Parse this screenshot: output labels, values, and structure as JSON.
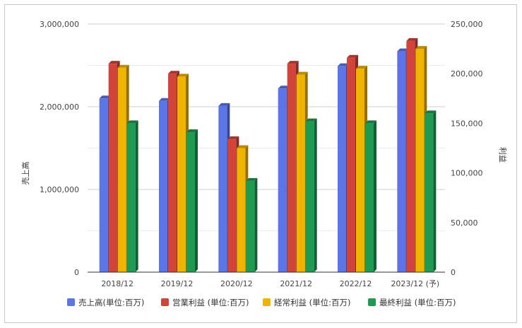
{
  "chart_data": {
    "type": "bar",
    "title": "",
    "categories": [
      "2018/12",
      "2019/12",
      "2020/12",
      "2021/12",
      "2022/12",
      "2023/12 (予)"
    ],
    "left_axis": {
      "label": "売上高",
      "ylim": [
        0,
        3000000
      ],
      "ticks": [
        0,
        1000000,
        2000000,
        3000000
      ],
      "tick_labels": [
        "0",
        "1,000,000",
        "2,000,000",
        "3,000,000"
      ]
    },
    "right_axis": {
      "label": "利益",
      "ylim": [
        0,
        250000
      ],
      "ticks": [
        0,
        50000,
        100000,
        150000,
        200000,
        250000
      ],
      "tick_labels": [
        "0",
        "50,000",
        "100,000",
        "150,000",
        "200,000",
        "250,000"
      ]
    },
    "series": [
      {
        "name": "売上高(単位:百万)",
        "axis": "left",
        "color": "#5b74e8",
        "values": [
          2100000,
          2070000,
          2010000,
          2220000,
          2490000,
          2670000
        ]
      },
      {
        "name": "営業利益 (単位:百万)",
        "axis": "right",
        "color": "#d2433a",
        "values": [
          210000,
          200000,
          134000,
          210000,
          216000,
          233000
        ]
      },
      {
        "name": "経常利益 (単位:百万)",
        "axis": "right",
        "color": "#f0b400",
        "values": [
          206000,
          197000,
          125000,
          199000,
          205000,
          225000
        ]
      },
      {
        "name": "最終利益 (単位:百万)",
        "axis": "right",
        "color": "#1f9a52",
        "values": [
          150000,
          141000,
          92000,
          152000,
          150000,
          160000
        ]
      }
    ],
    "grid": true,
    "legend_position": "bottom"
  }
}
